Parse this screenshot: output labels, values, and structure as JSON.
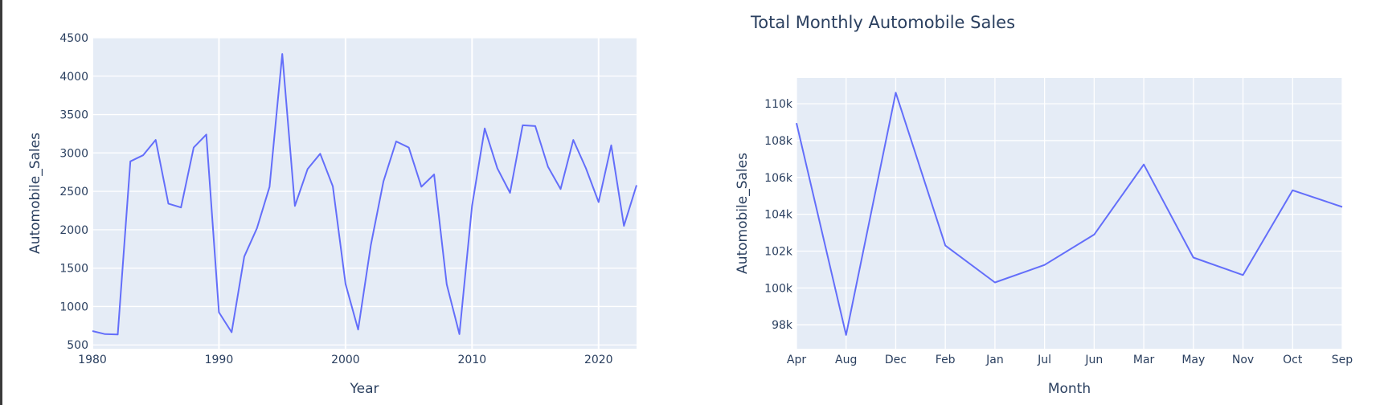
{
  "chart_data": [
    {
      "type": "line",
      "title": "",
      "xlabel": "Year",
      "ylabel": "Automobile_Sales",
      "xlim": [
        1980,
        2023
      ],
      "ylim": [
        450,
        4500
      ],
      "x_ticks": [
        1980,
        1990,
        2000,
        2010,
        2020
      ],
      "y_ticks": [
        500,
        1000,
        1500,
        2000,
        2500,
        3000,
        3500,
        4000,
        4500
      ],
      "grid": true,
      "color": "#636efa",
      "x": [
        1980,
        1981,
        1982,
        1983,
        1984,
        1985,
        1986,
        1987,
        1988,
        1989,
        1990,
        1991,
        1992,
        1993,
        1994,
        1995,
        1996,
        1997,
        1998,
        1999,
        2000,
        2001,
        2002,
        2003,
        2004,
        2005,
        2006,
        2007,
        2008,
        2009,
        2010,
        2011,
        2012,
        2013,
        2014,
        2015,
        2016,
        2017,
        2018,
        2019,
        2020,
        2021,
        2022,
        2023
      ],
      "values": [
        680,
        640,
        635,
        2890,
        2970,
        3170,
        2340,
        2290,
        3070,
        3240,
        925,
        665,
        1650,
        2020,
        2560,
        4290,
        2310,
        2790,
        2990,
        2565,
        1295,
        700,
        1800,
        2630,
        3150,
        3070,
        2560,
        2720,
        1290,
        640,
        2310,
        3320,
        2800,
        2480,
        3360,
        3350,
        2820,
        2530,
        3170,
        2800,
        2360,
        3100,
        2050,
        2580
      ]
    },
    {
      "type": "line",
      "title": "Total Monthly Automobile Sales",
      "xlabel": "Month",
      "ylabel": "Automobile_Sales",
      "categories": [
        "Apr",
        "Aug",
        "Dec",
        "Feb",
        "Jan",
        "Jul",
        "Jun",
        "Mar",
        "May",
        "Nov",
        "Oct",
        "Sep"
      ],
      "values": [
        108950,
        97450,
        110600,
        102300,
        100300,
        101250,
        102900,
        106700,
        101650,
        100700,
        105300,
        104400
      ],
      "ylim": [
        96700,
        111400
      ],
      "y_ticks": [
        98000,
        100000,
        102000,
        104000,
        106000,
        108000,
        110000
      ],
      "y_tick_labels": [
        "98k",
        "100k",
        "102k",
        "104k",
        "106k",
        "108k",
        "110k"
      ],
      "grid": true,
      "color": "#636efa"
    }
  ]
}
